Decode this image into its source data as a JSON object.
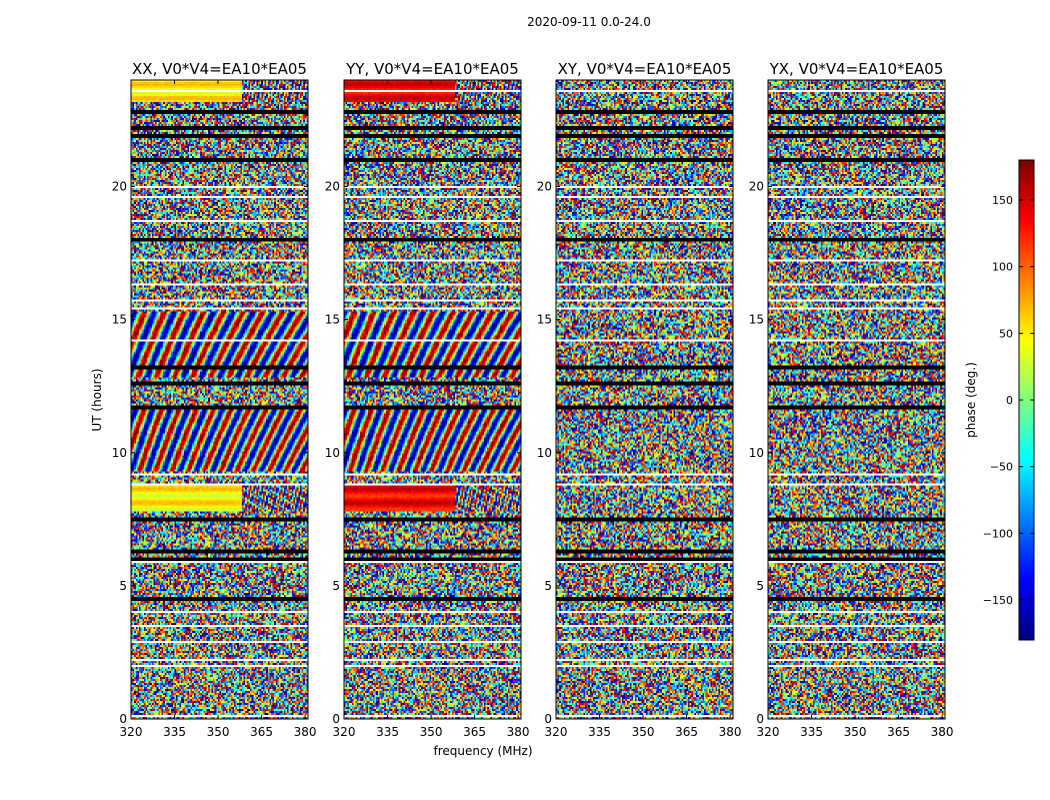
{
  "figure": {
    "suptitle": "2020-09-11 0.0-24.0",
    "xlabel": "frequency (MHz)",
    "ylabel": "UT (hours)",
    "colorbar_label": "phase (deg.)"
  },
  "chart_data": {
    "type": "heatmap",
    "title": "2020-09-11 0.0-24.0",
    "xlabel": "frequency (MHz)",
    "ylabel": "UT (hours)",
    "xlim": [
      320,
      381
    ],
    "ylim": [
      0,
      24
    ],
    "xticks": [
      "320",
      "335",
      "350",
      "365",
      "380"
    ],
    "xtick_values": [
      320,
      335,
      350,
      365,
      380
    ],
    "yticks": [
      "0",
      "5",
      "10",
      "15",
      "20"
    ],
    "ytick_values": [
      0,
      5,
      10,
      15,
      20
    ],
    "panels": [
      {
        "title": "XX, V0*V4=EA10*EA05",
        "polarization": "XX"
      },
      {
        "title": "YY, V0*V4=EA10*EA05",
        "polarization": "YY"
      },
      {
        "title": "XY, V0*V4=EA10*EA05",
        "polarization": "XY"
      },
      {
        "title": "YX, V0*V4=EA10*EA05",
        "polarization": "YX"
      }
    ],
    "colorbar": {
      "label": "phase (deg.)",
      "range": [
        -180,
        180
      ],
      "ticks": [
        "150",
        "100",
        "50",
        "0",
        "−50",
        "−100",
        "−150"
      ],
      "tick_values": [
        150,
        100,
        50,
        0,
        -50,
        -100,
        -150
      ],
      "colormap": "jet"
    },
    "flagged_gap_hours": [
      0.1,
      2.0,
      2.2,
      2.9,
      3.5,
      4.0,
      4.5,
      5.9,
      6.0,
      6.3,
      7.5,
      8.8,
      9.2,
      11.7,
      12.6,
      13.2,
      14.2,
      15.4,
      15.7,
      16.3,
      17.2,
      18.0,
      18.7,
      19.6,
      20.0,
      21.0,
      21.9,
      22.2,
      22.8,
      23.6
    ],
    "coherent_bands_hours": [
      [
        7.8,
        8.8
      ],
      [
        23.2,
        24.0
      ]
    ]
  }
}
